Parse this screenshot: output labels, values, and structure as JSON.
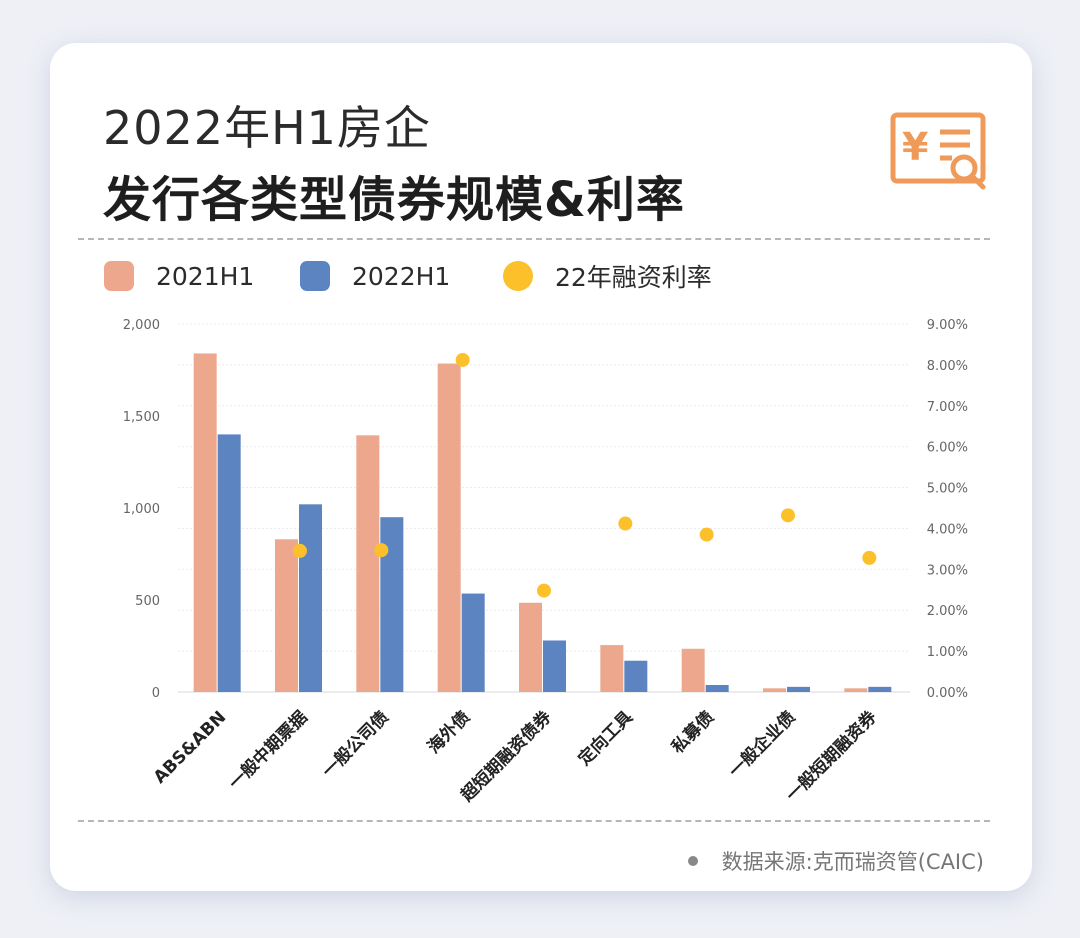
{
  "header": {
    "title_line1": "2022年H1房企",
    "title_line2": "发行各类型债券规模&利率"
  },
  "icon": {
    "name": "yuan-document-search-icon",
    "color": "#ef9a58"
  },
  "legend": {
    "items": [
      {
        "label": "2021H1",
        "color": "#eca78c"
      },
      {
        "label": "2022H1",
        "color": "#5b84c0"
      },
      {
        "label": "22年融资利率",
        "color": "#fcc02b"
      }
    ]
  },
  "source": {
    "text": "数据来源:克而瑞资管(CAIC)"
  },
  "chart_data": {
    "type": "bar",
    "categories": [
      "ABS&ABN",
      "一般中期票据",
      "一般公司债",
      "海外债",
      "超短期融资债券",
      "定向工具",
      "私募债",
      "一般企业债",
      "一般短期融资券"
    ],
    "series": [
      {
        "name": "2021H1",
        "axis": "left",
        "type": "bar",
        "color": "#eca78c",
        "values": [
          1840,
          830,
          1395,
          1785,
          485,
          255,
          235,
          20,
          20
        ]
      },
      {
        "name": "2022H1",
        "axis": "left",
        "type": "bar",
        "color": "#5b84c0",
        "values": [
          1400,
          1020,
          950,
          535,
          280,
          170,
          38,
          28,
          28
        ]
      },
      {
        "name": "22年融资利率",
        "axis": "right",
        "type": "scatter",
        "color": "#fcc02b",
        "values": [
          null,
          3.45,
          3.47,
          8.12,
          2.48,
          4.12,
          3.85,
          4.32,
          3.28
        ]
      }
    ],
    "ylim_left": [
      0,
      2000
    ],
    "yticks_left": [
      "0",
      "500",
      "1,000",
      "1,500",
      "2,000"
    ],
    "ylim_right": [
      0,
      9
    ],
    "yticks_right": [
      "0.00%",
      "1.00%",
      "2.00%",
      "3.00%",
      "4.00%",
      "5.00%",
      "6.00%",
      "7.00%",
      "8.00%",
      "9.00%"
    ],
    "grid": true,
    "legend_position": "top-left"
  }
}
